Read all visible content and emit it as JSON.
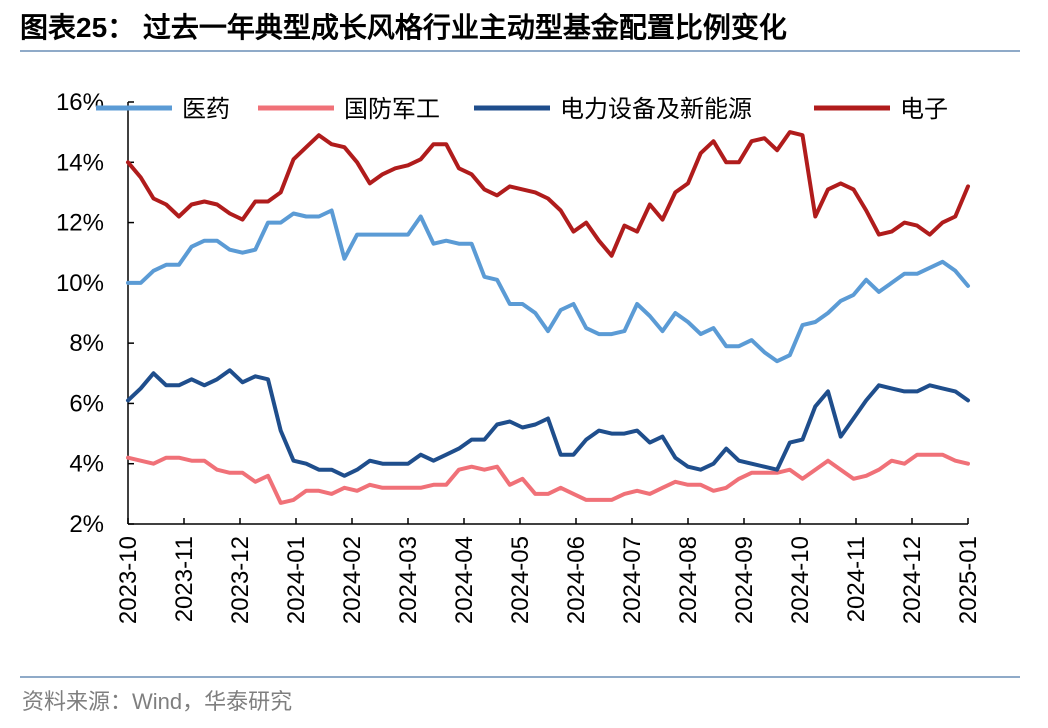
{
  "header": {
    "title": "图表25：  过去一年典型成长风格行业主动型基金配置比例变化"
  },
  "footer": {
    "source": "资料来源：Wind，华泰研究"
  },
  "chart_data": {
    "type": "line",
    "title": "",
    "xlabel": "",
    "ylabel": "",
    "ylim": [
      2,
      16
    ],
    "y_ticks": [
      "2%",
      "4%",
      "6%",
      "8%",
      "10%",
      "12%",
      "14%",
      "16%"
    ],
    "y_tick_values": [
      2,
      4,
      6,
      8,
      10,
      12,
      14,
      16
    ],
    "x_ticks": [
      "2023-10",
      "2023-11",
      "2023-12",
      "2024-01",
      "2024-02",
      "2024-03",
      "2024-04",
      "2024-05",
      "2024-06",
      "2024-07",
      "2024-08",
      "2024-09",
      "2024-10",
      "2024-11",
      "2024-12",
      "2025-01"
    ],
    "grid": false,
    "legend_position": "top",
    "series": [
      {
        "name": "医药",
        "color": "#5b9bd5",
        "values": [
          10.0,
          10.0,
          10.4,
          10.6,
          10.6,
          11.2,
          11.4,
          11.4,
          11.1,
          11.0,
          11.1,
          12.0,
          12.0,
          12.3,
          12.2,
          12.2,
          12.4,
          10.8,
          11.6,
          11.6,
          11.6,
          11.6,
          11.6,
          12.2,
          11.3,
          11.4,
          11.3,
          11.3,
          10.2,
          10.1,
          9.3,
          9.3,
          9.0,
          8.4,
          9.1,
          9.3,
          8.5,
          8.3,
          8.3,
          8.4,
          9.3,
          8.9,
          8.4,
          9.0,
          8.7,
          8.3,
          8.5,
          7.9,
          7.9,
          8.1,
          7.7,
          7.4,
          7.6,
          8.6,
          8.7,
          9.0,
          9.4,
          9.6,
          10.1,
          9.7,
          10.0,
          10.3,
          10.3,
          10.5,
          10.7,
          10.4,
          9.9
        ]
      },
      {
        "name": "国防军工",
        "color": "#f07178",
        "values": [
          4.2,
          4.1,
          4.0,
          4.2,
          4.2,
          4.1,
          4.1,
          3.8,
          3.7,
          3.7,
          3.4,
          3.6,
          2.7,
          2.8,
          3.1,
          3.1,
          3.0,
          3.2,
          3.1,
          3.3,
          3.2,
          3.2,
          3.2,
          3.2,
          3.3,
          3.3,
          3.8,
          3.9,
          3.8,
          3.9,
          3.3,
          3.5,
          3.0,
          3.0,
          3.2,
          3.0,
          2.8,
          2.8,
          2.8,
          3.0,
          3.1,
          3.0,
          3.2,
          3.4,
          3.3,
          3.3,
          3.1,
          3.2,
          3.5,
          3.7,
          3.7,
          3.7,
          3.8,
          3.5,
          3.8,
          4.1,
          3.8,
          3.5,
          3.6,
          3.8,
          4.1,
          4.0,
          4.3,
          4.3,
          4.3,
          4.1,
          4.0
        ]
      },
      {
        "name": "电力设备及新能源",
        "color": "#1f4e8c",
        "values": [
          6.1,
          6.5,
          7.0,
          6.6,
          6.6,
          6.8,
          6.6,
          6.8,
          7.1,
          6.7,
          6.9,
          6.8,
          5.1,
          4.1,
          4.0,
          3.8,
          3.8,
          3.6,
          3.8,
          4.1,
          4.0,
          4.0,
          4.0,
          4.3,
          4.1,
          4.3,
          4.5,
          4.8,
          4.8,
          5.3,
          5.4,
          5.2,
          5.3,
          5.5,
          4.3,
          4.3,
          4.8,
          5.1,
          5.0,
          5.0,
          5.1,
          4.7,
          4.9,
          4.2,
          3.9,
          3.8,
          4.0,
          4.5,
          4.1,
          4.0,
          3.9,
          3.8,
          4.7,
          4.8,
          5.9,
          6.4,
          4.9,
          5.5,
          6.1,
          6.6,
          6.5,
          6.4,
          6.4,
          6.6,
          6.5,
          6.4,
          6.1
        ]
      },
      {
        "name": "电子",
        "color": "#b01c1c",
        "values": [
          14.0,
          13.5,
          12.8,
          12.6,
          12.2,
          12.6,
          12.7,
          12.6,
          12.3,
          12.1,
          12.7,
          12.7,
          13.0,
          14.1,
          14.5,
          14.9,
          14.6,
          14.5,
          14.0,
          13.3,
          13.6,
          13.8,
          13.9,
          14.1,
          14.6,
          14.6,
          13.8,
          13.6,
          13.1,
          12.9,
          13.2,
          13.1,
          13.0,
          12.8,
          12.4,
          11.7,
          12.0,
          11.4,
          10.9,
          11.9,
          11.7,
          12.6,
          12.1,
          13.0,
          13.3,
          14.3,
          14.7,
          14.0,
          14.0,
          14.7,
          14.8,
          14.4,
          15.0,
          14.9,
          12.2,
          13.1,
          13.3,
          13.1,
          12.4,
          11.6,
          11.7,
          12.0,
          11.9,
          11.6,
          12.0,
          12.2,
          13.2
        ]
      }
    ]
  }
}
